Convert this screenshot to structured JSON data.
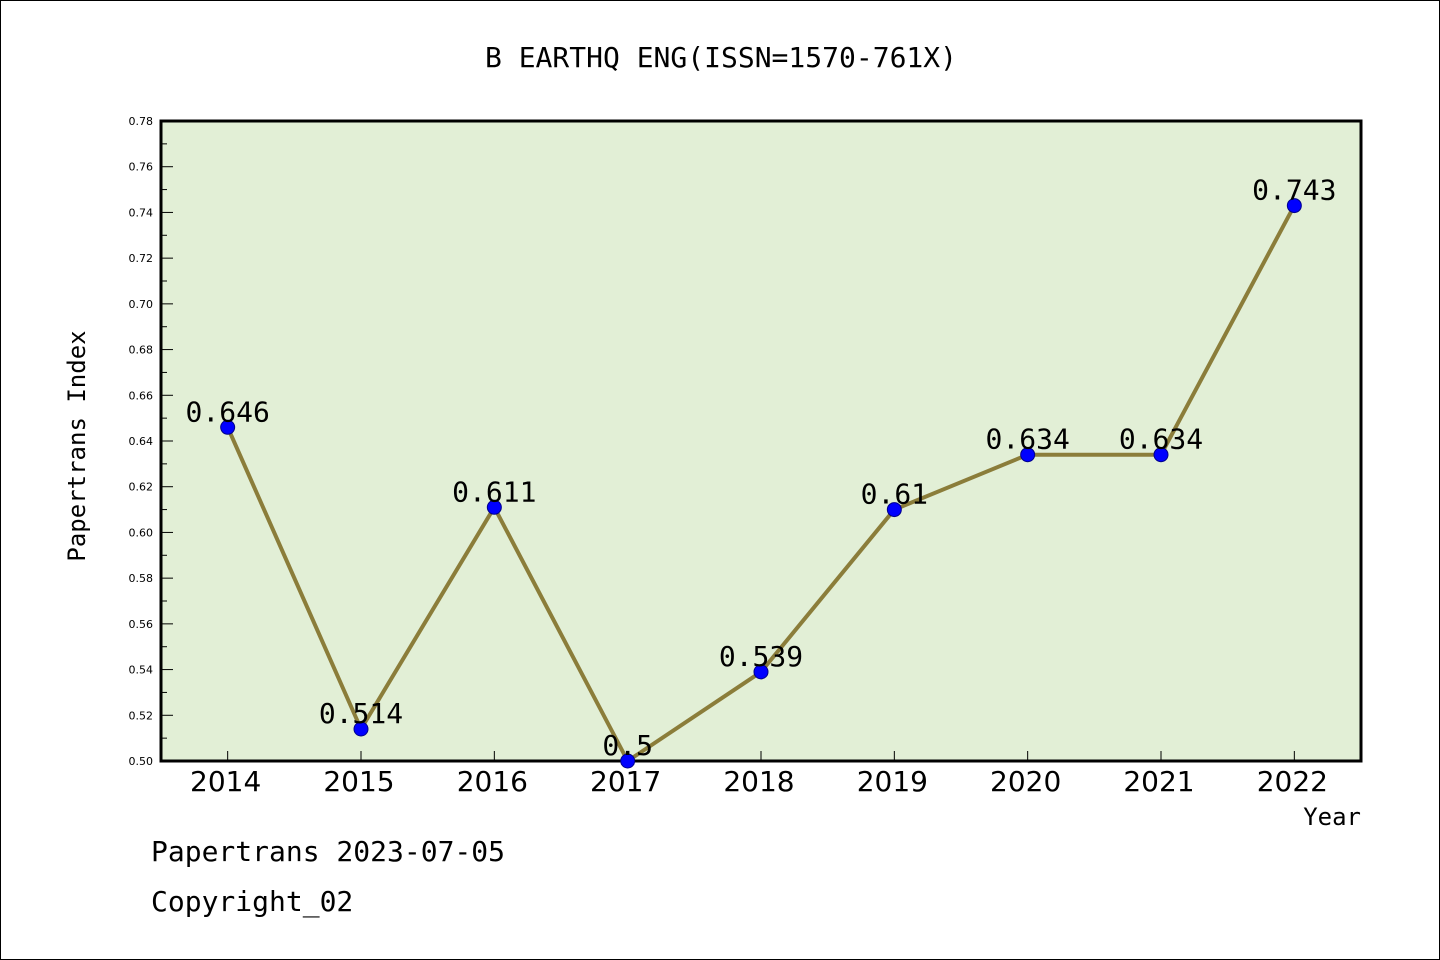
{
  "chart_data": {
    "type": "line",
    "title": "B EARTHQ ENG(ISSN=1570-761X)",
    "xlabel": "Year",
    "ylabel": "Papertrans Index",
    "categories": [
      "2014",
      "2015",
      "2016",
      "2017",
      "2018",
      "2019",
      "2020",
      "2021",
      "2022"
    ],
    "series": [
      {
        "values": [
          0.646,
          0.514,
          0.611,
          0.5,
          0.539,
          0.61,
          0.634,
          0.634,
          0.743
        ],
        "labels": [
          "0.646",
          "0.514",
          "0.611",
          "0.5",
          "0.539",
          "0.61",
          "0.634",
          "0.634",
          "0.743"
        ]
      }
    ],
    "ylim": [
      0.5,
      0.78
    ],
    "yticks": [
      "0.50",
      "0.52",
      "0.54",
      "0.56",
      "0.58",
      "0.60",
      "0.62",
      "0.64",
      "0.66",
      "0.68",
      "0.70",
      "0.72",
      "0.74",
      "0.76",
      "0.78"
    ],
    "grid": false,
    "colors": {
      "plot_background": "#e2efd6",
      "line": "#8b7d3a",
      "marker": "#0000ff"
    }
  },
  "footer": {
    "line1": "Papertrans 2023-07-05",
    "line2": "Copyright_02"
  }
}
